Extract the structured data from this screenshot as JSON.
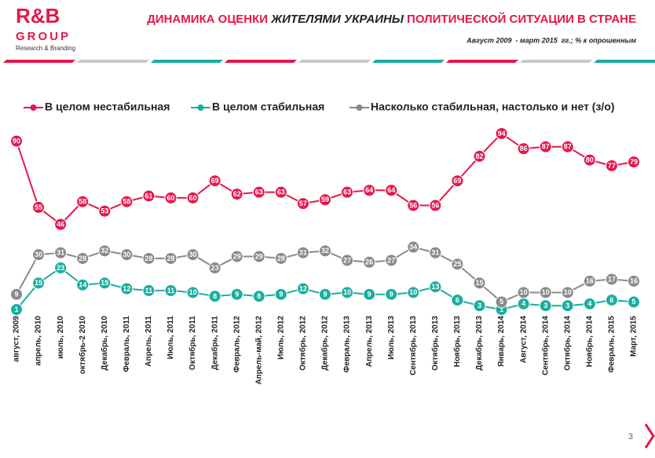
{
  "header": {
    "logo": {
      "name": "R&B",
      "group": "GROUP",
      "tagline": "Research & Branding"
    },
    "title_parts": [
      "ДИНАМИКА ОЦЕНКИ ",
      "ЖИТЕЛЯМИ УКРАИНЫ",
      " ПОЛИТИЧЕСКОЙ СИТУАЦИИ В СТРАНЕ"
    ],
    "subtitle": "Август 2009  - март 2015  гг.; % к опрошенным"
  },
  "page_number": "3",
  "chart_data": {
    "type": "line",
    "categories": [
      "август, 2009",
      "апрель, 2010",
      "июль, 2010",
      "октябрь-2 2010",
      "Декабрь, 2010",
      "Февраль, 2011",
      "Апрель, 2011",
      "Июль, 2011",
      "Октябрь, 2011",
      "Декабрь, 2011",
      "Февраль, 2012",
      "Апрель-май, 2012",
      "Июль, 2012",
      "Октябрь, 2012",
      "Декабрь, 2012",
      "Февраль, 2013",
      "Апрель, 2013",
      "Июль, 2013",
      "Сентябрь, 2013",
      "Октябрь, 2013",
      "Ноябрь, 2013",
      "Декабрь, 2013",
      "Январь, 2014",
      "Август, 2014",
      "Сентябрь, 2014",
      "Октябрь, 2014",
      "Ноябрь, 2014",
      "Февраль, 2015",
      "Март, 2015"
    ],
    "series": [
      {
        "name": "В целом нестабильная",
        "color": "#e4174c",
        "values": [
          90,
          55,
          46,
          58,
          53,
          58,
          61,
          60,
          60,
          69,
          62,
          63,
          63,
          57,
          59,
          63,
          64,
          64,
          56,
          56,
          69,
          82,
          94,
          86,
          87,
          87,
          80,
          77,
          79
        ]
      },
      {
        "name": "В целом стабильная",
        "color": "#1aaea0",
        "values": [
          1,
          15,
          23,
          14,
          15,
          12,
          11,
          11,
          10,
          8,
          9,
          8,
          9,
          12,
          9,
          10,
          9,
          9,
          10,
          13,
          6,
          3,
          1,
          4,
          3,
          3,
          4,
          6,
          5
        ]
      },
      {
        "name": "Насколько стабильная, настолько и нет (з/о)",
        "color": "#8a8a8a",
        "values": [
          9,
          30,
          31,
          28,
          32,
          30,
          28,
          28,
          30,
          23,
          29,
          29,
          28,
          31,
          32,
          27,
          26,
          27,
          34,
          31,
          25,
          15,
          5,
          10,
          10,
          10,
          16,
          17,
          16
        ]
      }
    ],
    "legend": "top"
  }
}
